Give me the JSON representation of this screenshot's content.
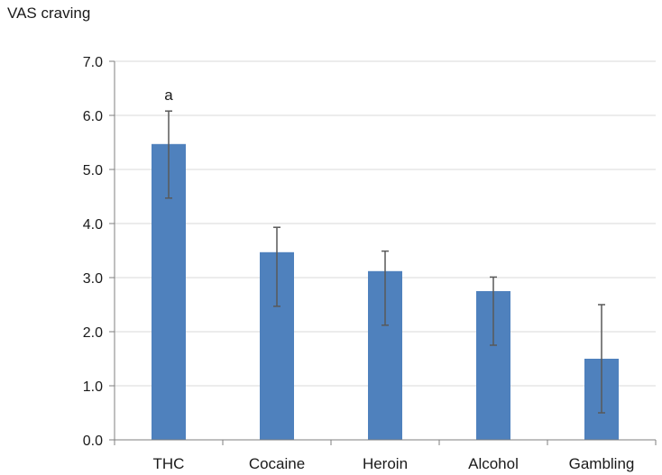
{
  "chart_data": {
    "type": "bar",
    "title": "",
    "ylabel": "VAS craving",
    "xlabel": "",
    "categories": [
      "THC",
      "Cocaine",
      "Heroin",
      "Alcohol",
      "Gambling"
    ],
    "values": [
      5.47,
      3.47,
      3.12,
      2.75,
      1.5
    ],
    "error_upper": [
      6.08,
      3.93,
      3.49,
      3.01,
      2.5
    ],
    "error_lower": [
      4.47,
      2.47,
      2.12,
      1.75,
      0.5
    ],
    "annotations": [
      {
        "category": "THC",
        "text": "a"
      }
    ],
    "ylim": [
      0,
      7
    ],
    "yticks": [
      "0.0",
      "1.0",
      "2.0",
      "3.0",
      "4.0",
      "5.0",
      "6.0",
      "7.0"
    ],
    "grid": true,
    "bar_color": "#4f81bd",
    "error_color": "#595959",
    "grid_color": "#d9d9d9",
    "axis_color": "#7f7f7f"
  }
}
